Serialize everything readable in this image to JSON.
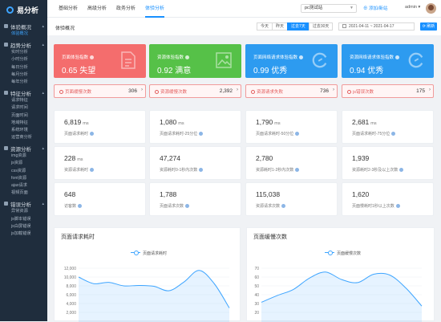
{
  "app": {
    "logo_text": "易分析"
  },
  "sidebar": {
    "groups": [
      {
        "label": "体验概况",
        "items": [
          "体验概况"
        ]
      },
      {
        "label": "趋势分析",
        "items": [
          "实时分析",
          "小时分析",
          "每日分析",
          "每月分析",
          "每年分析"
        ]
      },
      {
        "label": "特征分析",
        "items": [
          "请求特征",
          "请求时间",
          "页面时间",
          "地域特征",
          "系统环境",
          "运营商分析"
        ]
      },
      {
        "label": "资源分析",
        "items": [
          "img资源",
          "js资源",
          "css资源",
          "font资源",
          "ajax请求",
          "视频页面"
        ]
      },
      {
        "label": "错误分析",
        "items": [
          "异常资源",
          "js脚本错误",
          "js白屏错误",
          "js加载错误"
        ]
      }
    ]
  },
  "topbar": {
    "tabs": [
      "基础分析",
      "高级分析",
      "政务分析",
      "体验分析"
    ],
    "site_select": "pc测试站",
    "add_site": "添加/新站",
    "user": "admin"
  },
  "filter": {
    "page_title": "体验概况",
    "ranges": [
      "今天",
      "昨天",
      "过去7天",
      "过去30天"
    ],
    "date_range": "2021-04-11  ~  2021-04-17",
    "refresh": "刷新"
  },
  "scores": [
    {
      "label": "页面体验指数",
      "value": "0.65 失望",
      "color": "#f46d6d"
    },
    {
      "label": "资源体验指数",
      "value": "0.92 满意",
      "color": "#56c148"
    },
    {
      "label": "页面网络请求体验指数",
      "value": "0.99 优秀",
      "color": "#2d9bf0"
    },
    {
      "label": "资源网络请求体验指数",
      "value": "0.94 优秀",
      "color": "#2d9bf0"
    }
  ],
  "counters": [
    {
      "label": "页面缓慢次数",
      "value": "306"
    },
    {
      "label": "资源缓慢次数",
      "value": "2,392"
    },
    {
      "label": "资源请求失败",
      "value": "736"
    },
    {
      "label": "js错误次数",
      "value": "175"
    }
  ],
  "metrics": [
    {
      "value": "6,819",
      "unit": "ms",
      "label": "页面请求耗时"
    },
    {
      "value": "1,080",
      "unit": "ms",
      "label": "页面请求耗时-25分位"
    },
    {
      "value": "1,790",
      "unit": "ms",
      "label": "页面请求耗时-50分位"
    },
    {
      "value": "2,681",
      "unit": "ms",
      "label": "页面请求耗时-75分位"
    },
    {
      "value": "228",
      "unit": "ms",
      "label": "资源请求耗时"
    },
    {
      "value": "47,274",
      "unit": "",
      "label": "资源耗时0-1秒内次数"
    },
    {
      "value": "2,780",
      "unit": "",
      "label": "资源耗时1-2秒内次数"
    },
    {
      "value": "1,939",
      "unit": "",
      "label": "资源耗时2-3秒及以上次数"
    },
    {
      "value": "648",
      "unit": "",
      "label": "访客数"
    },
    {
      "value": "1,788",
      "unit": "",
      "label": "页面请求次数"
    },
    {
      "value": "115,038",
      "unit": "",
      "label": "资源请求次数"
    },
    {
      "value": "1,620",
      "unit": "",
      "label": "页面慢耗时1秒以上次数"
    }
  ],
  "chart_data": [
    {
      "type": "area",
      "title": "页面请求耗时",
      "series": [
        {
          "name": "页面请求耗时",
          "values": [
            10000,
            8500,
            8800,
            8000,
            8100,
            7900,
            6900,
            8900,
            11500,
            8500,
            3000
          ]
        }
      ],
      "ylim": [
        0,
        12000
      ],
      "yticks": [
        "12,000",
        "10,000",
        "8,000",
        "6,000",
        "4,000",
        "2,000"
      ],
      "grid": true,
      "legend": "top-center"
    },
    {
      "type": "area",
      "title": "页面缓慢次数",
      "series": [
        {
          "name": "页面缓慢次数",
          "values": [
            25,
            34,
            42,
            57,
            65,
            55,
            51,
            62,
            61,
            44,
            20
          ]
        }
      ],
      "ylim": [
        0,
        70
      ],
      "yticks": [
        "70",
        "60",
        "50",
        "40",
        "30",
        "20"
      ],
      "grid": true,
      "legend": "top-center"
    }
  ]
}
